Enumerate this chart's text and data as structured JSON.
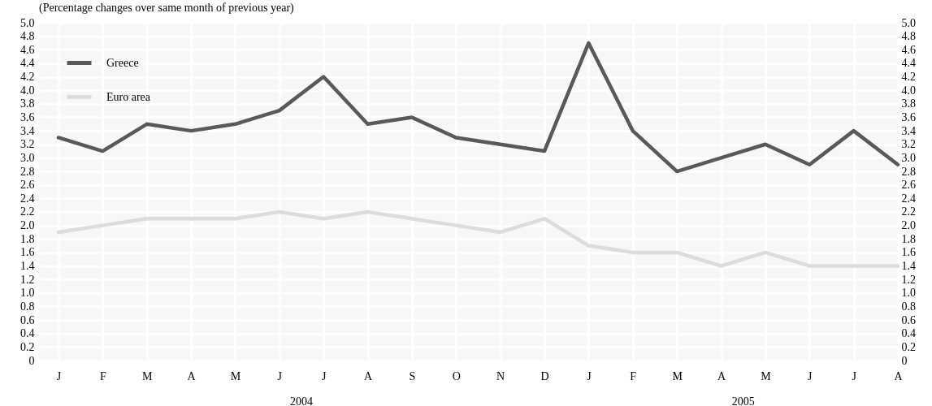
{
  "chart_data": {
    "type": "line",
    "subtitle": "(Percentage changes over same month of previous year)",
    "categories": [
      "J",
      "F",
      "M",
      "A",
      "M",
      "J",
      "J",
      "A",
      "S",
      "O",
      "N",
      "D",
      "J",
      "F",
      "M",
      "A",
      "M",
      "J",
      "J",
      "A"
    ],
    "series": [
      {
        "name": "Greece",
        "color": "#595959",
        "values": [
          3.3,
          3.1,
          3.5,
          3.4,
          3.5,
          3.7,
          4.2,
          3.5,
          3.6,
          3.3,
          3.2,
          3.1,
          4.7,
          3.4,
          2.8,
          3.0,
          3.2,
          2.9,
          3.4,
          2.9
        ]
      },
      {
        "name": "Euro area",
        "color": "#dcdcdc",
        "values": [
          1.9,
          2.0,
          2.1,
          2.1,
          2.1,
          2.2,
          2.1,
          2.2,
          2.1,
          2.0,
          1.9,
          2.1,
          1.7,
          1.6,
          1.6,
          1.4,
          1.6,
          1.4,
          1.4,
          1.4
        ]
      }
    ],
    "ylim": [
      0,
      5
    ],
    "yticks": [
      0,
      0.2,
      0.4,
      0.6,
      0.8,
      {
        "value": 1,
        "label": "1.0"
      },
      1.2,
      1.4,
      1.6,
      1.8,
      {
        "value": 2,
        "label": "2.0"
      },
      2.2,
      2.4,
      2.6,
      2.8,
      {
        "value": 3,
        "label": "3.0"
      },
      3.2,
      3.4,
      3.6,
      3.8,
      {
        "value": 4,
        "label": "4.0"
      },
      4.2,
      4.4,
      4.6,
      4.8,
      {
        "value": 5,
        "label": "5.0"
      }
    ],
    "y2lim": [
      0,
      5
    ],
    "y2ticks": [
      0,
      0.2,
      0.4,
      0.6,
      0.8,
      {
        "value": 1,
        "label": "1.0"
      },
      1.2,
      1.4,
      1.6,
      1.8,
      {
        "value": 2,
        "label": "2.0"
      },
      2.2,
      2.4,
      2.6,
      2.8,
      {
        "value": 3,
        "label": "3.0"
      },
      3.2,
      3.4,
      3.6,
      3.8,
      {
        "value": 4,
        "label": "4.0"
      },
      4.2,
      4.4,
      4.6,
      4.8,
      {
        "value": 5,
        "label": "5.0"
      }
    ],
    "annotations": [
      "2004",
      "2005"
    ],
    "grid": true,
    "legend": "top left",
    "line_style": "solid"
  }
}
